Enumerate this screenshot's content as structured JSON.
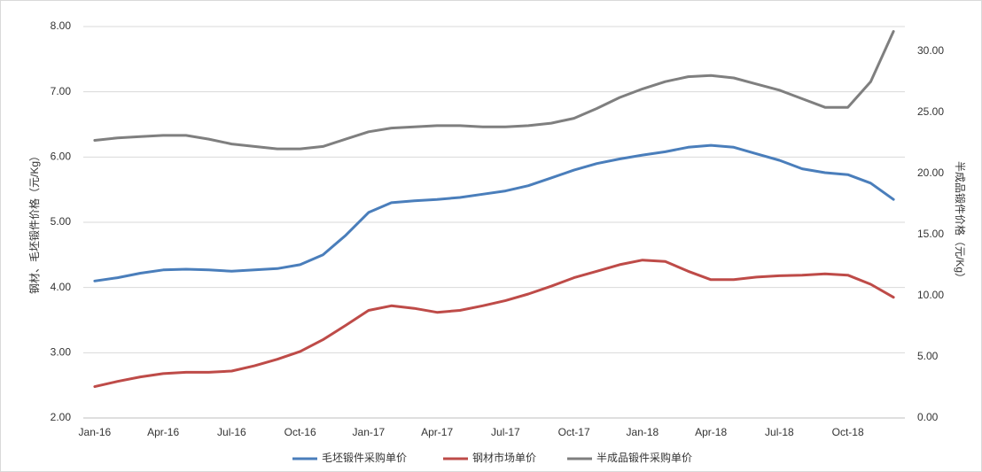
{
  "chart_data": {
    "type": "line",
    "categories": [
      "Jan-16",
      null,
      null,
      "Apr-16",
      null,
      null,
      "Jul-16",
      null,
      null,
      "Oct-16",
      null,
      null,
      "Jan-17",
      null,
      null,
      "Apr-17",
      null,
      null,
      "Jul-17",
      null,
      null,
      "Oct-17",
      null,
      null,
      "Jan-18",
      null,
      null,
      "Apr-18",
      null,
      null,
      "Jul-18",
      null,
      null,
      "Oct-18",
      null,
      null
    ],
    "y_label": "钢材、毛坯锻件价格（元/Kg）",
    "y2_label": "半成品锻件价格（元/Kg）",
    "ylim": [
      2,
      8
    ],
    "yticks": [
      {
        "value": 2,
        "label": "2.00"
      },
      {
        "value": 3,
        "label": "3.00"
      },
      {
        "value": 4,
        "label": "4.00"
      },
      {
        "value": 5,
        "label": "5.00"
      },
      {
        "value": 6,
        "label": "6.00"
      },
      {
        "value": 7,
        "label": "7.00"
      },
      {
        "value": 8,
        "label": "8.00"
      }
    ],
    "y2lim": [
      0,
      32
    ],
    "y2ticks": [
      {
        "value": 0,
        "label": "0.00"
      },
      {
        "value": 5,
        "label": "5.00"
      },
      {
        "value": 10,
        "label": "10.00"
      },
      {
        "value": 15,
        "label": "15.00"
      },
      {
        "value": 20,
        "label": "20.00"
      },
      {
        "value": 25,
        "label": "25.00"
      },
      {
        "value": 30,
        "label": "30.00"
      }
    ],
    "grid": true,
    "legend": "bottom",
    "series": [
      {
        "name": "毛坯锻件采购单价",
        "color": "#4a7ebb",
        "values": [
          4.1,
          4.15,
          4.22,
          4.27,
          4.28,
          4.27,
          4.25,
          4.27,
          4.29,
          4.35,
          4.5,
          4.8,
          5.15,
          5.3,
          5.33,
          5.35,
          5.38,
          5.43,
          5.48,
          5.56,
          5.68,
          5.8,
          5.9,
          5.97,
          6.03,
          6.08,
          6.15,
          6.18,
          6.15,
          6.05,
          5.95,
          5.82,
          5.76,
          5.73,
          5.6,
          5.35
        ]
      },
      {
        "name": "钢材市场单价",
        "color": "#be4b48",
        "values": [
          2.48,
          2.56,
          2.63,
          2.68,
          2.7,
          2.7,
          2.72,
          2.8,
          2.9,
          3.02,
          3.2,
          3.42,
          3.65,
          3.72,
          3.68,
          3.62,
          3.65,
          3.72,
          3.8,
          3.9,
          4.02,
          4.15,
          4.25,
          4.35,
          4.42,
          4.4,
          4.25,
          4.12,
          4.12,
          4.16,
          4.18,
          4.19,
          4.21,
          4.19,
          4.05,
          3.85
        ]
      },
      {
        "name": "半成品锻件采购单价",
        "color": "#7f7f7f",
        "axis": "y2",
        "values": [
          22.7,
          22.9,
          23.0,
          23.1,
          23.1,
          22.8,
          22.4,
          22.2,
          22.0,
          22.0,
          22.2,
          22.8,
          23.4,
          23.7,
          23.8,
          23.9,
          23.9,
          23.8,
          23.8,
          23.9,
          24.1,
          24.5,
          25.3,
          26.2,
          26.9,
          27.5,
          27.9,
          28.0,
          27.8,
          27.3,
          26.8,
          26.1,
          25.4,
          25.4,
          27.5,
          31.6
        ]
      }
    ]
  }
}
